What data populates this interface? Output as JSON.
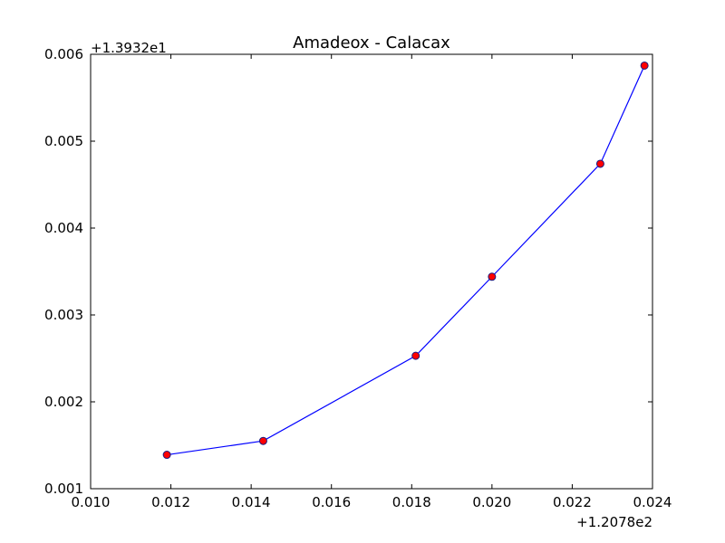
{
  "chart_data": {
    "type": "line",
    "title": "Amadeox - Calacax",
    "xlabel": "",
    "ylabel": "",
    "x_offset_label": "+1.2078e2",
    "y_offset_label": "+1.3932e1",
    "xlim": [
      0.01,
      0.024
    ],
    "ylim": [
      0.001,
      0.006
    ],
    "x_ticks": [
      "0.010",
      "0.012",
      "0.014",
      "0.016",
      "0.018",
      "0.020",
      "0.022",
      "0.024"
    ],
    "y_ticks": [
      "0.001",
      "0.002",
      "0.003",
      "0.004",
      "0.005",
      "0.006"
    ],
    "grid": false,
    "series": [
      {
        "x": [
          0.0119,
          0.0143,
          0.0181,
          0.02,
          0.0227,
          0.0238
        ],
        "y": [
          0.00139,
          0.00155,
          0.00253,
          0.00344,
          0.00474,
          0.00587
        ],
        "line_color": "#0000ff",
        "marker_color": "#ff0000"
      }
    ]
  }
}
